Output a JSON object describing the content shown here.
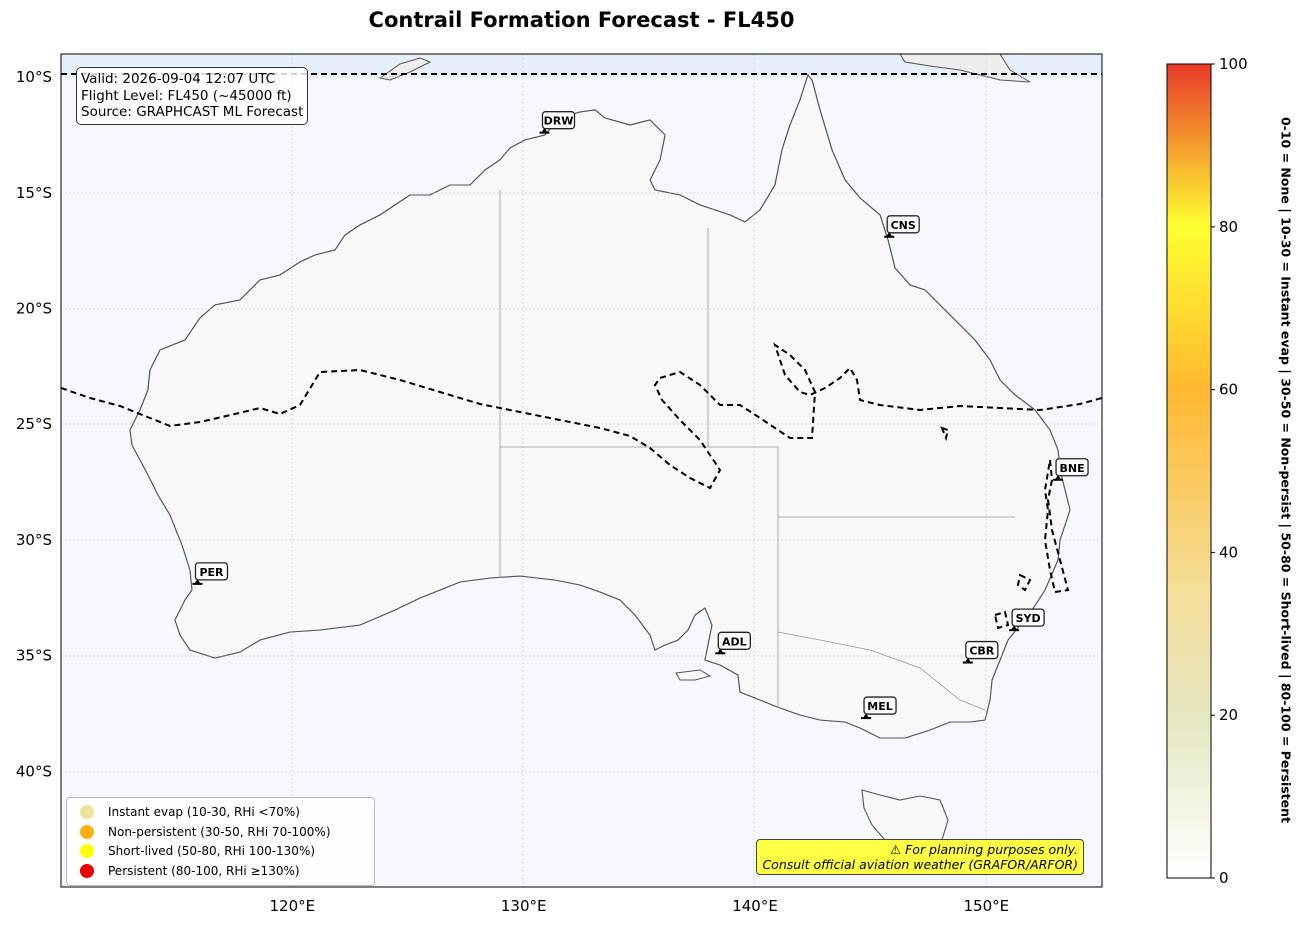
{
  "title": "Contrail Formation Forecast - FL450",
  "info": {
    "valid": "Valid: 2026-09-04 12:07 UTC",
    "flight_level": "Flight Level: FL450 (~45000 ft)",
    "source": "Source: GRAPHCAST ML Forecast"
  },
  "map": {
    "lon_range": [
      110,
      155
    ],
    "lat_range": [
      -45,
      -9
    ],
    "lat_ticks": [
      "10°S",
      "15°S",
      "20°S",
      "25°S",
      "30°S",
      "35°S",
      "40°S"
    ],
    "lon_ticks": [
      "120°E",
      "130°E",
      "140°E",
      "150°E"
    ],
    "colors": {
      "ocean": "#f5f9ff",
      "land_low": "#f8f8f8",
      "land_warm": "#e8e8c4",
      "contour": "#000000"
    }
  },
  "airports": [
    {
      "code": "DRW",
      "lon": 130.9,
      "lat": -12.4
    },
    {
      "code": "CNS",
      "lon": 145.8,
      "lat": -16.9
    },
    {
      "code": "BNE",
      "lon": 153.1,
      "lat": -27.4
    },
    {
      "code": "PER",
      "lon": 115.9,
      "lat": -31.9
    },
    {
      "code": "ADL",
      "lon": 138.5,
      "lat": -34.9
    },
    {
      "code": "SYD",
      "lon": 151.2,
      "lat": -33.9
    },
    {
      "code": "CBR",
      "lon": 149.2,
      "lat": -35.3
    },
    {
      "code": "MEL",
      "lon": 144.8,
      "lat": -37.7
    }
  ],
  "legend": [
    {
      "label": "Instant evap (10-30, RHi <70%)",
      "color": "#f0e2a0"
    },
    {
      "label": "Non-persistent (30-50, RHi 70-100%)",
      "color": "#ffb010"
    },
    {
      "label": "Short-lived (50-80, RHi 100-130%)",
      "color": "#ffff00"
    },
    {
      "label": "Persistent (80-100, RHi ≥130%)",
      "color": "#e60000"
    }
  ],
  "disclaimer": {
    "line1": "⚠ For planning purposes only.",
    "line2": "Consult official aviation weather (GRAFOR/ARFOR)"
  },
  "colorbar": {
    "ticks": [
      "0",
      "20",
      "40",
      "60",
      "80",
      "100"
    ],
    "label": "0-10 = None  |  10-30 = Instant evap  |  30-50 = Non-persist  |  50-80 = Short-lived  |  80-100 = Persistent"
  }
}
